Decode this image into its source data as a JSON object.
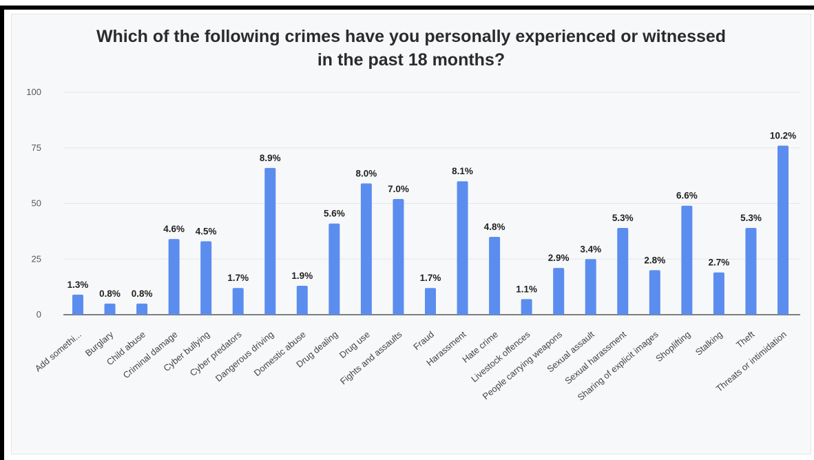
{
  "chart_data": {
    "type": "bar",
    "title": "Which of the following crimes have you personally experienced or witnessed\nin the past 18 months?",
    "xlabel": "",
    "ylabel": "",
    "ylim": [
      0,
      100
    ],
    "yticks": [
      0,
      25,
      50,
      75,
      100
    ],
    "ytick_labels": [
      "0",
      "25",
      "50",
      "75",
      "100"
    ],
    "grid": true,
    "bar_color": "#5b8def",
    "categories": [
      "Add somethi...",
      "Burglary",
      "Child abuse",
      "Criminal damage",
      "Cyber bullying",
      "Cyber predators",
      "Dangerous driving",
      "Domestic abuse",
      "Drug dealing",
      "Drug use",
      "Fights and assaults",
      "Fraud",
      "Harassment",
      "Hate crime",
      "Livestock offences",
      "People carrying weapons",
      "Sexual assault",
      "Sexual harassment",
      "Sharing of explicit images",
      "Shoplifting",
      "Stalking",
      "Theft",
      "Threats or intimidation"
    ],
    "values": [
      9,
      5,
      5,
      34,
      33,
      12,
      66,
      13,
      41,
      59,
      52,
      12,
      60,
      35,
      7,
      21,
      25,
      39,
      20,
      49,
      19,
      39,
      76
    ],
    "data_labels": [
      "1.3%",
      "0.8%",
      "0.8%",
      "4.6%",
      "4.5%",
      "1.7%",
      "8.9%",
      "1.9%",
      "5.6%",
      "8.0%",
      "7.0%",
      "1.7%",
      "8.1%",
      "4.8%",
      "1.1%",
      "2.9%",
      "3.4%",
      "5.3%",
      "2.8%",
      "6.6%",
      "2.7%",
      "5.3%",
      "10.2%"
    ]
  }
}
